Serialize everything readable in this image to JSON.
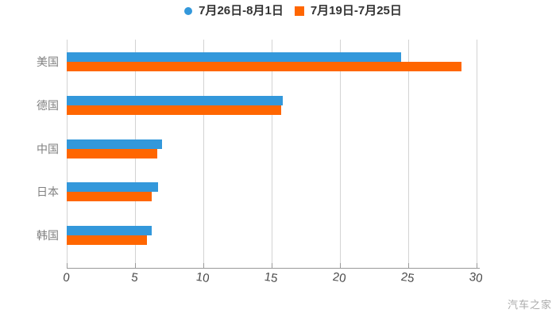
{
  "legend": {
    "series1_label": "7月26日-8月1日",
    "series2_label": "7月19日-7月25日"
  },
  "watermark": "汽车之家",
  "colors": {
    "series1": "#3398db",
    "series2": "#ff6600",
    "grid": "#d3d3d3",
    "axis": "#999999",
    "x_label": "#4a4a4a",
    "y_label": "#808080"
  },
  "chart_data": {
    "type": "bar",
    "orientation": "horizontal",
    "title": "",
    "xlabel": "",
    "ylabel": "",
    "categories": [
      "美国",
      "德国",
      "中国",
      "日本",
      "韩国"
    ],
    "series": [
      {
        "name": "7月26日-8月1日",
        "color": "#3398db",
        "marker": "circle",
        "values": [
          24.5,
          15.8,
          7.0,
          6.7,
          6.2
        ]
      },
      {
        "name": "7月19日-7月25日",
        "color": "#ff6600",
        "marker": "square",
        "values": [
          28.9,
          15.7,
          6.6,
          6.2,
          5.9
        ]
      }
    ],
    "xlim": [
      0,
      30
    ],
    "x_ticks": [
      0,
      5,
      10,
      15,
      20,
      25,
      30
    ],
    "x_tick_labels": [
      "0",
      "5",
      "10",
      "15",
      "20",
      "25",
      "30"
    ],
    "grid": true,
    "legend_position": "top"
  }
}
